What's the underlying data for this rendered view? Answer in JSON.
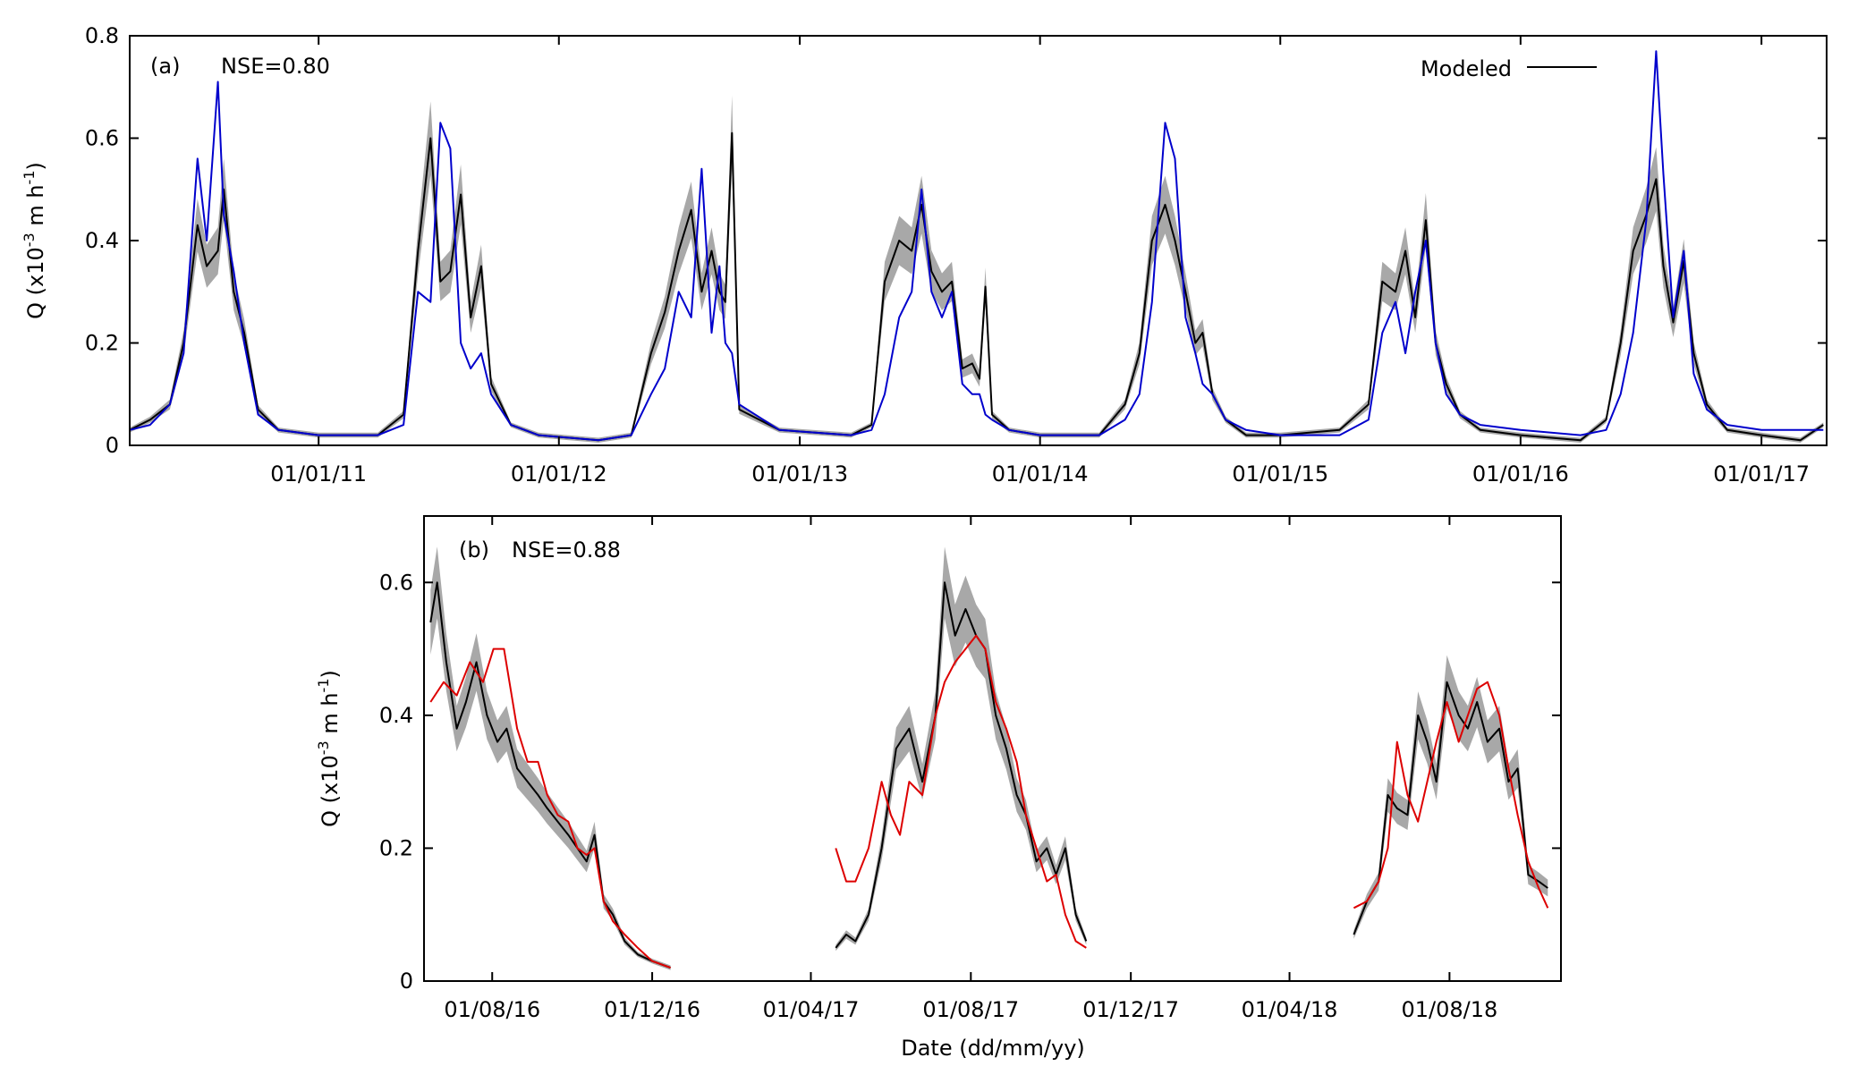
{
  "chart_data": [
    {
      "type": "line",
      "panel_label": "(a)",
      "annotation": "NSE=0.80",
      "ylabel_main": "Q (x10",
      "ylabel_exp_neg": "-3",
      "ylabel_mid": " m h",
      "ylabel_exp2": "-1",
      "ylabel_end": ")",
      "xlabel": "",
      "ylim": [
        0,
        0.8
      ],
      "xlim": [
        "2010-03-20",
        "2017-04-10"
      ],
      "y_ticks": [
        "0",
        "0.2",
        "0.4",
        "0.6",
        "0.8"
      ],
      "x_ticks": [
        "01/01/11",
        "01/01/12",
        "01/01/13",
        "01/01/14",
        "01/01/15",
        "01/01/16",
        "01/01/17"
      ],
      "legend": {
        "position": "top-right",
        "entries": [
          "Modeled"
        ]
      },
      "series": [
        {
          "name": "Modeled",
          "color": "#000000",
          "band_color": "#999999",
          "x": [
            "2010-03-20",
            "2010-04-20",
            "2010-05-20",
            "2010-06-10",
            "2010-07-01",
            "2010-07-15",
            "2010-08-01",
            "2010-08-10",
            "2010-08-25",
            "2010-09-10",
            "2010-10-01",
            "2010-11-01",
            "2011-01-01",
            "2011-04-01",
            "2011-05-10",
            "2011-06-01",
            "2011-06-20",
            "2011-07-05",
            "2011-07-20",
            "2011-08-05",
            "2011-08-20",
            "2011-09-05",
            "2011-09-20",
            "2011-10-20",
            "2011-12-01",
            "2012-03-01",
            "2012-04-20",
            "2012-05-20",
            "2012-06-10",
            "2012-07-01",
            "2012-07-20",
            "2012-08-05",
            "2012-08-20",
            "2012-09-01",
            "2012-09-10",
            "2012-09-20",
            "2012-10-01",
            "2012-12-01",
            "2013-03-20",
            "2013-04-20",
            "2013-05-10",
            "2013-06-01",
            "2013-06-20",
            "2013-07-05",
            "2013-07-20",
            "2013-08-05",
            "2013-08-20",
            "2013-09-05",
            "2013-09-20",
            "2013-10-01",
            "2013-10-10",
            "2013-10-20",
            "2013-11-15",
            "2014-01-01",
            "2014-04-01",
            "2014-05-10",
            "2014-06-01",
            "2014-06-20",
            "2014-07-10",
            "2014-07-25",
            "2014-08-10",
            "2014-08-25",
            "2014-09-05",
            "2014-09-20",
            "2014-10-10",
            "2014-11-10",
            "2015-01-01",
            "2015-04-01",
            "2015-05-15",
            "2015-06-05",
            "2015-06-25",
            "2015-07-10",
            "2015-07-25",
            "2015-08-10",
            "2015-08-25",
            "2015-09-10",
            "2015-10-01",
            "2015-11-01",
            "2016-01-01",
            "2016-04-01",
            "2016-05-10",
            "2016-06-01",
            "2016-06-20",
            "2016-07-10",
            "2016-07-25",
            "2016-08-05",
            "2016-08-20",
            "2016-09-05",
            "2016-09-20",
            "2016-10-10",
            "2016-11-10",
            "2017-01-01",
            "2017-03-01",
            "2017-04-05"
          ],
          "values": [
            0.03,
            0.05,
            0.08,
            0.2,
            0.43,
            0.35,
            0.38,
            0.5,
            0.3,
            0.22,
            0.07,
            0.03,
            0.02,
            0.02,
            0.06,
            0.38,
            0.6,
            0.32,
            0.34,
            0.49,
            0.25,
            0.35,
            0.12,
            0.04,
            0.02,
            0.01,
            0.02,
            0.18,
            0.26,
            0.38,
            0.46,
            0.3,
            0.38,
            0.3,
            0.28,
            0.61,
            0.07,
            0.03,
            0.02,
            0.04,
            0.32,
            0.4,
            0.38,
            0.47,
            0.34,
            0.3,
            0.32,
            0.15,
            0.16,
            0.13,
            0.31,
            0.06,
            0.03,
            0.02,
            0.02,
            0.08,
            0.18,
            0.4,
            0.47,
            0.4,
            0.3,
            0.2,
            0.22,
            0.1,
            0.05,
            0.02,
            0.02,
            0.03,
            0.08,
            0.32,
            0.3,
            0.38,
            0.25,
            0.44,
            0.2,
            0.12,
            0.06,
            0.03,
            0.02,
            0.01,
            0.05,
            0.2,
            0.38,
            0.45,
            0.52,
            0.35,
            0.24,
            0.36,
            0.18,
            0.08,
            0.03,
            0.02,
            0.01,
            0.04
          ]
        },
        {
          "name": "",
          "color": "#0000cc",
          "x": [
            "2010-03-20",
            "2010-04-20",
            "2010-05-20",
            "2010-06-10",
            "2010-07-01",
            "2010-07-15",
            "2010-08-01",
            "2010-08-10",
            "2010-08-25",
            "2010-09-10",
            "2010-10-01",
            "2010-11-01",
            "2011-01-01",
            "2011-04-01",
            "2011-05-10",
            "2011-06-01",
            "2011-06-20",
            "2011-07-05",
            "2011-07-20",
            "2011-08-05",
            "2011-08-20",
            "2011-09-05",
            "2011-09-20",
            "2011-10-20",
            "2011-12-01",
            "2012-03-01",
            "2012-04-20",
            "2012-05-20",
            "2012-06-10",
            "2012-07-01",
            "2012-07-20",
            "2012-08-05",
            "2012-08-20",
            "2012-09-01",
            "2012-09-10",
            "2012-09-20",
            "2012-10-01",
            "2012-12-01",
            "2013-03-20",
            "2013-04-20",
            "2013-05-10",
            "2013-06-01",
            "2013-06-20",
            "2013-07-05",
            "2013-07-20",
            "2013-08-05",
            "2013-08-20",
            "2013-09-05",
            "2013-09-20",
            "2013-10-01",
            "2013-10-10",
            "2013-10-20",
            "2013-11-15",
            "2014-01-01",
            "2014-04-01",
            "2014-05-10",
            "2014-06-01",
            "2014-06-20",
            "2014-07-10",
            "2014-07-25",
            "2014-08-10",
            "2014-08-25",
            "2014-09-05",
            "2014-09-20",
            "2014-10-10",
            "2014-11-10",
            "2015-01-01",
            "2015-04-01",
            "2015-05-15",
            "2015-06-05",
            "2015-06-25",
            "2015-07-10",
            "2015-07-25",
            "2015-08-10",
            "2015-08-25",
            "2015-09-10",
            "2015-10-01",
            "2015-11-01",
            "2016-01-01",
            "2016-04-01",
            "2016-05-10",
            "2016-06-01",
            "2016-06-20",
            "2016-07-10",
            "2016-07-25",
            "2016-08-05",
            "2016-08-20",
            "2016-09-05",
            "2016-09-20",
            "2016-10-10",
            "2016-11-10",
            "2017-01-01",
            "2017-03-01",
            "2017-04-05"
          ],
          "values": [
            0.03,
            0.04,
            0.08,
            0.18,
            0.56,
            0.4,
            0.71,
            0.45,
            0.34,
            0.2,
            0.06,
            0.03,
            0.02,
            0.02,
            0.04,
            0.3,
            0.28,
            0.63,
            0.58,
            0.2,
            0.15,
            0.18,
            0.1,
            0.04,
            0.02,
            0.01,
            0.02,
            0.1,
            0.15,
            0.3,
            0.25,
            0.54,
            0.22,
            0.35,
            0.2,
            0.18,
            0.08,
            0.03,
            0.02,
            0.03,
            0.1,
            0.25,
            0.3,
            0.5,
            0.3,
            0.25,
            0.3,
            0.12,
            0.1,
            0.1,
            0.06,
            0.05,
            0.03,
            0.02,
            0.02,
            0.05,
            0.1,
            0.28,
            0.63,
            0.56,
            0.25,
            0.18,
            0.12,
            0.1,
            0.05,
            0.03,
            0.02,
            0.02,
            0.05,
            0.22,
            0.28,
            0.18,
            0.3,
            0.4,
            0.2,
            0.1,
            0.06,
            0.04,
            0.03,
            0.02,
            0.03,
            0.1,
            0.22,
            0.44,
            0.77,
            0.53,
            0.25,
            0.38,
            0.14,
            0.07,
            0.04,
            0.03,
            0.03,
            0.03
          ]
        }
      ]
    },
    {
      "type": "line",
      "panel_label": "(b)",
      "annotation": "NSE=0.88",
      "ylabel_main": "Q (x10",
      "ylabel_exp_neg": "-3",
      "ylabel_mid": " m h",
      "ylabel_exp2": "-1",
      "ylabel_end": ")",
      "xlabel": "Date (dd/mm/yy)",
      "ylim": [
        0,
        0.7
      ],
      "xlim": [
        "2016-06-10",
        "2018-10-25"
      ],
      "y_ticks": [
        "0",
        "0.2",
        "0.4",
        "0.6"
      ],
      "x_ticks": [
        "01/08/16",
        "01/12/16",
        "01/04/17",
        "01/08/17",
        "01/12/17",
        "01/04/18",
        "01/08/18"
      ],
      "series": [
        {
          "name": "",
          "color": "#000000",
          "band_color": "#999999",
          "segments": [
            {
              "x": [
                "2016-06-15",
                "2016-06-20",
                "2016-06-27",
                "2016-07-05",
                "2016-07-12",
                "2016-07-20",
                "2016-07-28",
                "2016-08-05",
                "2016-08-12",
                "2016-08-20",
                "2016-08-28",
                "2016-09-05",
                "2016-09-12",
                "2016-09-20",
                "2016-09-28",
                "2016-10-05",
                "2016-10-12",
                "2016-10-18",
                "2016-10-25",
                "2016-11-01",
                "2016-11-10",
                "2016-11-20",
                "2016-12-01",
                "2016-12-15"
              ],
              "values": [
                0.54,
                0.6,
                0.48,
                0.38,
                0.42,
                0.48,
                0.4,
                0.36,
                0.38,
                0.32,
                0.3,
                0.28,
                0.26,
                0.24,
                0.22,
                0.2,
                0.18,
                0.22,
                0.12,
                0.1,
                0.06,
                0.04,
                0.03,
                0.02
              ]
            },
            {
              "x": [
                "2017-04-20",
                "2017-04-28",
                "2017-05-05",
                "2017-05-15",
                "2017-05-25",
                "2017-06-05",
                "2017-06-15",
                "2017-06-25",
                "2017-07-05",
                "2017-07-12",
                "2017-07-20",
                "2017-07-28",
                "2017-08-05",
                "2017-08-12",
                "2017-08-20",
                "2017-08-28",
                "2017-09-05",
                "2017-09-12",
                "2017-09-20",
                "2017-09-28",
                "2017-10-05",
                "2017-10-12",
                "2017-10-20",
                "2017-10-28"
              ],
              "values": [
                0.05,
                0.07,
                0.06,
                0.1,
                0.2,
                0.35,
                0.38,
                0.3,
                0.4,
                0.6,
                0.52,
                0.56,
                0.52,
                0.5,
                0.4,
                0.35,
                0.28,
                0.25,
                0.18,
                0.2,
                0.16,
                0.2,
                0.1,
                0.06
              ]
            },
            {
              "x": [
                "2018-05-20",
                "2018-05-30",
                "2018-06-08",
                "2018-06-15",
                "2018-06-22",
                "2018-06-30",
                "2018-07-08",
                "2018-07-15",
                "2018-07-22",
                "2018-07-30",
                "2018-08-08",
                "2018-08-15",
                "2018-08-22",
                "2018-08-30",
                "2018-09-08",
                "2018-09-15",
                "2018-09-22",
                "2018-09-30",
                "2018-10-08",
                "2018-10-15"
              ],
              "values": [
                0.07,
                0.12,
                0.15,
                0.28,
                0.26,
                0.25,
                0.4,
                0.36,
                0.3,
                0.45,
                0.4,
                0.38,
                0.42,
                0.36,
                0.38,
                0.3,
                0.32,
                0.16,
                0.15,
                0.14
              ]
            }
          ]
        },
        {
          "name": "",
          "color": "#dd0000",
          "segments": [
            {
              "x": [
                "2016-06-15",
                "2016-06-25",
                "2016-07-05",
                "2016-07-15",
                "2016-07-25",
                "2016-08-02",
                "2016-08-10",
                "2016-08-20",
                "2016-08-28",
                "2016-09-05",
                "2016-09-12",
                "2016-09-20",
                "2016-09-28",
                "2016-10-05",
                "2016-10-12",
                "2016-10-18",
                "2016-10-25",
                "2016-11-01",
                "2016-11-10",
                "2016-11-20",
                "2016-12-01",
                "2016-12-15"
              ],
              "values": [
                0.42,
                0.45,
                0.43,
                0.48,
                0.45,
                0.5,
                0.5,
                0.38,
                0.33,
                0.33,
                0.28,
                0.25,
                0.24,
                0.2,
                0.19,
                0.2,
                0.12,
                0.09,
                0.07,
                0.05,
                0.03,
                0.02
              ]
            },
            {
              "x": [
                "2017-04-20",
                "2017-04-28",
                "2017-05-05",
                "2017-05-15",
                "2017-05-25",
                "2017-06-01",
                "2017-06-08",
                "2017-06-15",
                "2017-06-25",
                "2017-07-05",
                "2017-07-12",
                "2017-07-20",
                "2017-07-28",
                "2017-08-05",
                "2017-08-12",
                "2017-08-20",
                "2017-08-28",
                "2017-09-05",
                "2017-09-12",
                "2017-09-20",
                "2017-09-28",
                "2017-10-05",
                "2017-10-12",
                "2017-10-20",
                "2017-10-28"
              ],
              "values": [
                0.2,
                0.15,
                0.15,
                0.2,
                0.3,
                0.25,
                0.22,
                0.3,
                0.28,
                0.4,
                0.45,
                0.48,
                0.5,
                0.52,
                0.5,
                0.42,
                0.38,
                0.33,
                0.25,
                0.2,
                0.15,
                0.16,
                0.1,
                0.06,
                0.05
              ]
            },
            {
              "x": [
                "2018-05-20",
                "2018-05-30",
                "2018-06-08",
                "2018-06-15",
                "2018-06-22",
                "2018-06-30",
                "2018-07-08",
                "2018-07-15",
                "2018-07-22",
                "2018-07-30",
                "2018-08-08",
                "2018-08-15",
                "2018-08-22",
                "2018-08-30",
                "2018-09-08",
                "2018-09-15",
                "2018-09-22",
                "2018-09-30",
                "2018-10-08",
                "2018-10-15"
              ],
              "values": [
                0.11,
                0.12,
                0.15,
                0.2,
                0.36,
                0.28,
                0.24,
                0.3,
                0.36,
                0.42,
                0.36,
                0.4,
                0.44,
                0.45,
                0.4,
                0.32,
                0.25,
                0.18,
                0.14,
                0.11
              ]
            }
          ]
        }
      ]
    }
  ]
}
